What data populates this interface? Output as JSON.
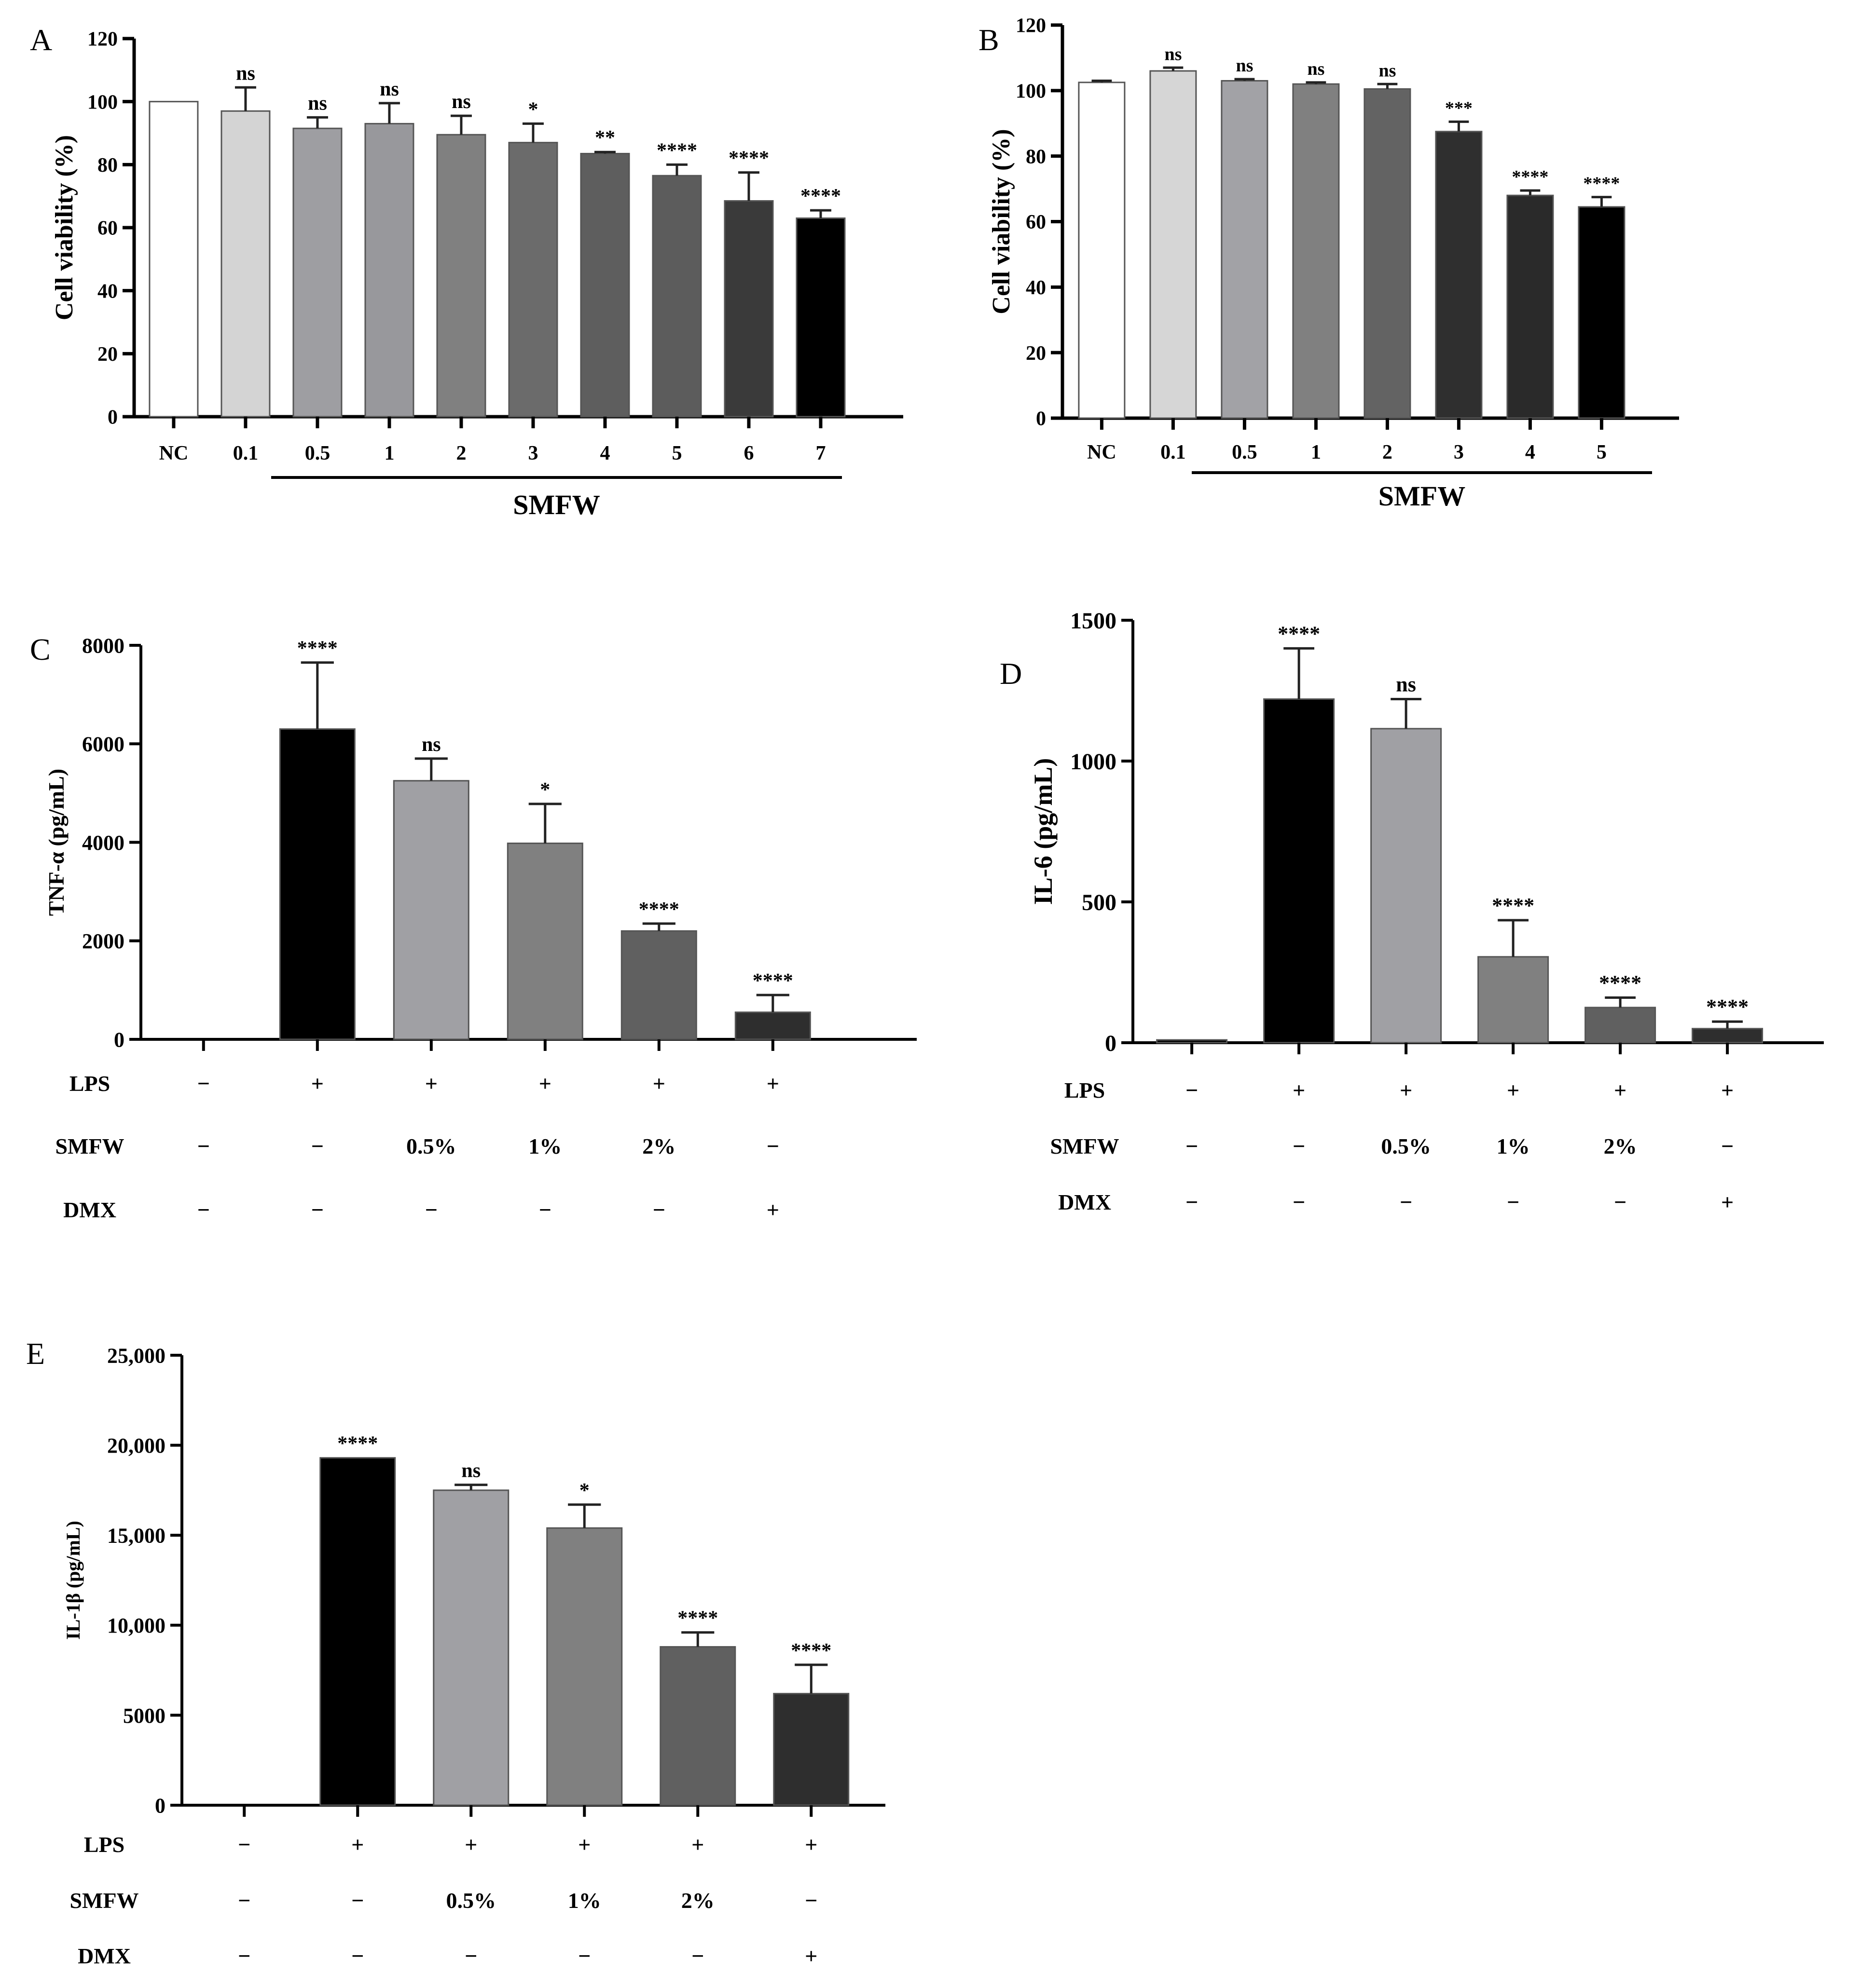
{
  "chart_data": [
    {
      "panel": "A",
      "type": "bar",
      "ylabel": "Cell viability (%)",
      "ylim": [
        0,
        120
      ],
      "yticks": [
        "0",
        "20",
        "40",
        "60",
        "80",
        "100",
        "120"
      ],
      "categories": [
        "NC",
        "0.1",
        "0.5",
        "1",
        "2",
        "3",
        "4",
        "5",
        "6",
        "7"
      ],
      "values": [
        100,
        97,
        91.5,
        93,
        89.5,
        87,
        83.5,
        76.5,
        68.5,
        63
      ],
      "errors": [
        0,
        7.5,
        3.5,
        6.5,
        6,
        6,
        0.5,
        3.5,
        9,
        2.5
      ],
      "fills": [
        "#ffffff",
        "#d4d4d4",
        "#9e9ea2",
        "#98989c",
        "#808080",
        "#6b6b6b",
        "#5e5e5e",
        "#5c5c5c",
        "#3a3a3a",
        "#000000"
      ],
      "significance": [
        "",
        "ns",
        "ns",
        "ns",
        "ns",
        "*",
        "**",
        "****",
        "****",
        "****"
      ],
      "group_label": "SMFW",
      "group_start": 1
    },
    {
      "panel": "B",
      "type": "bar",
      "ylabel": "Cell viability (%)",
      "ylim": [
        0,
        120
      ],
      "yticks": [
        "0",
        "20",
        "40",
        "60",
        "80",
        "100",
        "120"
      ],
      "categories": [
        "NC",
        "0.1",
        "0.5",
        "1",
        "2",
        "3",
        "4",
        "5"
      ],
      "values": [
        102.5,
        106,
        103,
        102,
        100.5,
        87.5,
        68,
        64.5
      ],
      "errors": [
        0.5,
        1,
        0.5,
        0.5,
        1.5,
        3,
        1.5,
        3
      ],
      "fills": [
        "#ffffff",
        "#d6d6d6",
        "#a2a2a6",
        "#808080",
        "#636363",
        "#2f2f2f",
        "#2a2a2a",
        "#000000"
      ],
      "significance": [
        "",
        "ns",
        "ns",
        "ns",
        "ns",
        "***",
        "****",
        "****"
      ],
      "group_label": "SMFW",
      "group_start": 1
    },
    {
      "panel": "C",
      "type": "bar",
      "ylabel": "TNF-α (pg/mL)",
      "ylim": [
        0,
        8000
      ],
      "yticks": [
        "0",
        "2000",
        "4000",
        "6000",
        "8000"
      ],
      "values": [
        0,
        6300,
        5250,
        3980,
        2200,
        550
      ],
      "errors": [
        0,
        1350,
        450,
        800,
        150,
        350
      ],
      "fills": [
        "#000000",
        "#000000",
        "#a0a0a4",
        "#808080",
        "#606060",
        "#2e2e2e"
      ],
      "significance": [
        "",
        "****",
        "ns",
        "*",
        "****",
        "****"
      ],
      "treatments": [
        {
          "label": "LPS",
          "values": [
            "−",
            "+",
            "+",
            "+",
            "+",
            "+"
          ]
        },
        {
          "label": "SMFW",
          "values": [
            "−",
            "−",
            "0.5%",
            "1%",
            "2%",
            "−"
          ]
        },
        {
          "label": "DMX",
          "values": [
            "−",
            "−",
            "−",
            "−",
            "−",
            "+"
          ]
        }
      ]
    },
    {
      "panel": "D",
      "type": "bar",
      "ylabel": "IL-6 (pg/mL)",
      "ylim": [
        0,
        1500
      ],
      "yticks": [
        "0",
        "500",
        "1000",
        "1500"
      ],
      "values": [
        10,
        1220,
        1115,
        305,
        125,
        50
      ],
      "errors": [
        0,
        180,
        105,
        130,
        35,
        25
      ],
      "fills": [
        "#000000",
        "#000000",
        "#a0a0a4",
        "#808080",
        "#606060",
        "#2e2e2e"
      ],
      "significance": [
        "",
        "****",
        "ns",
        "****",
        "****",
        "****"
      ],
      "treatments": [
        {
          "label": "LPS",
          "values": [
            "−",
            "+",
            "+",
            "+",
            "+",
            "+"
          ]
        },
        {
          "label": "SMFW",
          "values": [
            "−",
            "−",
            "0.5%",
            "1%",
            "2%",
            "−"
          ]
        },
        {
          "label": "DMX",
          "values": [
            "−",
            "−",
            "−",
            "−",
            "−",
            "+"
          ]
        }
      ]
    },
    {
      "panel": "E",
      "type": "bar",
      "ylabel": "IL-1β (pg/mL)",
      "ylim": [
        0,
        25000
      ],
      "yticks": [
        "0",
        "5000",
        "10,000",
        "15,000",
        "20,000",
        "25,000"
      ],
      "values": [
        0,
        19300,
        17500,
        15400,
        8800,
        6200
      ],
      "errors": [
        0,
        0,
        300,
        1300,
        800,
        1600
      ],
      "fills": [
        "#000000",
        "#000000",
        "#a0a0a4",
        "#808080",
        "#606060",
        "#2e2e2e"
      ],
      "significance": [
        "",
        "****",
        "ns",
        "*",
        "****",
        "****"
      ],
      "treatments": [
        {
          "label": "LPS",
          "values": [
            "−",
            "+",
            "+",
            "+",
            "+",
            "+"
          ]
        },
        {
          "label": "SMFW",
          "values": [
            "−",
            "−",
            "0.5%",
            "1%",
            "2%",
            "−"
          ]
        },
        {
          "label": "DMX",
          "values": [
            "−",
            "−",
            "−",
            "−",
            "−",
            "+"
          ]
        }
      ]
    }
  ]
}
